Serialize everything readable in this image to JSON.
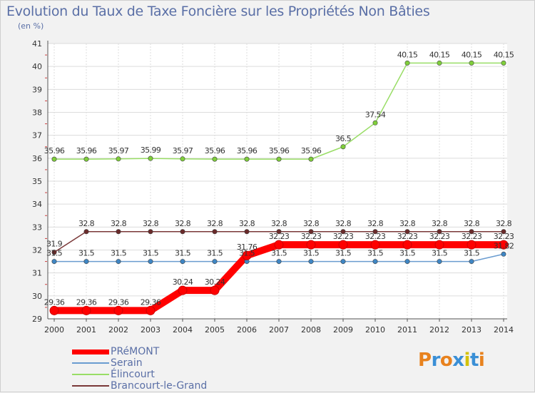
{
  "header": {
    "title": "Evolution du Taux de Taxe Foncière sur les Propriétés Non Bâties",
    "unit": "(en %)"
  },
  "chart_data": {
    "type": "line",
    "title": "Evolution du Taux de Taxe Foncière sur les Propriétés Non Bâties",
    "ylabel": "(en %)",
    "xlabel": "",
    "x": [
      "2000",
      "2001",
      "2002",
      "2003",
      "2004",
      "2005",
      "2006",
      "2007",
      "2008",
      "2009",
      "2010",
      "2011",
      "2012",
      "2013",
      "2014"
    ],
    "ylim": [
      29,
      41
    ],
    "yticks": [
      29,
      30,
      31,
      32,
      33,
      34,
      35,
      36,
      37,
      38,
      39,
      40,
      41
    ],
    "grid": true,
    "legend_position": "bottom-left",
    "series": [
      {
        "name": "PRéMONT",
        "color": "#ff0000",
        "values": [
          29.36,
          29.36,
          29.36,
          29.36,
          30.24,
          30.24,
          31.76,
          32.23,
          32.23,
          32.23,
          32.23,
          32.23,
          32.23,
          32.23,
          32.23
        ],
        "labels": [
          "29.36",
          "29.36",
          "29.36",
          "29.36",
          "30.24",
          "30.24",
          "31.76",
          "32.23",
          "32.23",
          "32.23",
          "32.23",
          "32.23",
          "32.23",
          "32.23",
          "32.23"
        ]
      },
      {
        "name": "Serain",
        "color": "#6a9cd0",
        "values": [
          31.5,
          31.5,
          31.5,
          31.5,
          31.5,
          31.5,
          31.5,
          31.5,
          31.5,
          31.5,
          31.5,
          31.5,
          31.5,
          31.5,
          31.82
        ],
        "labels": [
          "31.5",
          "31.5",
          "31.5",
          "31.5",
          "31.5",
          "31.5",
          "31.5",
          "31.5",
          "31.5",
          "31.5",
          "31.5",
          "31.5",
          "31.5",
          "31.5",
          "31.82"
        ]
      },
      {
        "name": "Élincourt",
        "color": "#99dd66",
        "values": [
          35.96,
          35.96,
          35.97,
          35.99,
          35.97,
          35.96,
          35.96,
          35.96,
          35.96,
          36.5,
          37.54,
          40.15,
          40.15,
          40.15,
          40.15
        ],
        "labels": [
          "35.96",
          "35.96",
          "35.97",
          "35.99",
          "35.97",
          "35.96",
          "35.96",
          "35.96",
          "35.96",
          "36.5",
          "37.54",
          "40.15",
          "40.15",
          "40.15",
          "40.15"
        ]
      },
      {
        "name": "Brancourt-le-Grand",
        "color": "#7a3838",
        "values": [
          31.9,
          32.8,
          32.8,
          32.8,
          32.8,
          32.8,
          32.8,
          32.8,
          32.8,
          32.8,
          32.8,
          32.8,
          32.8,
          32.8,
          32.8
        ],
        "labels": [
          "31.9",
          "32.8",
          "32.8",
          "32.8",
          "32.8",
          "32.8",
          "32.8",
          "32.8",
          "32.8",
          "32.8",
          "32.8",
          "32.8",
          "32.8",
          "32.8",
          "32.8"
        ]
      }
    ]
  },
  "legend": {
    "items": [
      {
        "label": "PRéMONT",
        "color": "#ff0000"
      },
      {
        "label": "Serain",
        "color": "#6a9cd0"
      },
      {
        "label": "Élincourt",
        "color": "#99dd66"
      },
      {
        "label": "Brancourt-le-Grand",
        "color": "#7a3838"
      }
    ]
  },
  "logo": {
    "text": "Proxiti",
    "colors": [
      "#e8821e",
      "#3a8fd6",
      "#e8821e",
      "#3a8fd6",
      "#d4c20a",
      "#3a8fd6",
      "#e8821e"
    ]
  }
}
